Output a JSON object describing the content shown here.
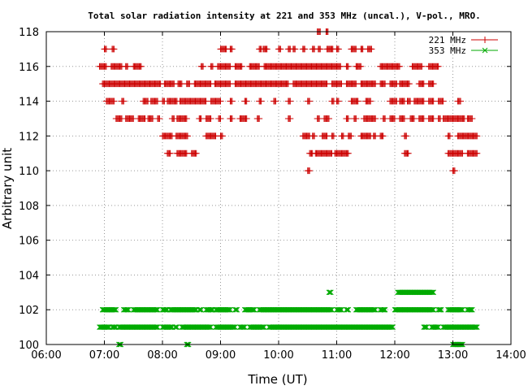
{
  "chart_data": {
    "type": "scatter",
    "title": "Total solar radiation intensity at 221 and 353 MHz (uncal.), V-pol., MRO.",
    "xlabel": "Time (UT)",
    "ylabel": "Arbitrary unit",
    "xlim": [
      "06:00",
      "14:00"
    ],
    "ylim": [
      100,
      118
    ],
    "xticks": [
      "06:00",
      "07:00",
      "08:00",
      "09:00",
      "10:00",
      "11:00",
      "12:00",
      "13:00",
      "14:00"
    ],
    "yticks": [
      "100",
      "102",
      "104",
      "106",
      "108",
      "110",
      "112",
      "114",
      "116",
      "118"
    ],
    "grid": true,
    "legend_position": "top-right",
    "series": [
      {
        "name": "221 MHz",
        "color": "#cc0000",
        "marker": "plus",
        "segments": [
          {
            "y": 118,
            "ranges": [
              [
                "10:40",
                "10:43"
              ],
              [
                "10:49",
                "10:51"
              ]
            ]
          },
          {
            "y": 117,
            "ranges": [
              [
                "07:00",
                "07:02"
              ],
              [
                "07:08",
                "07:10"
              ],
              [
                "09:00",
                "09:06"
              ],
              [
                "09:10",
                "09:12"
              ],
              [
                "09:40",
                "09:42"
              ],
              [
                "09:44",
                "09:48"
              ],
              [
                "10:00",
                "10:02"
              ],
              [
                "10:10",
                "10:12"
              ],
              [
                "10:15",
                "10:17"
              ],
              [
                "10:25",
                "10:27"
              ],
              [
                "10:35",
                "10:37"
              ],
              [
                "10:41",
                "10:43"
              ],
              [
                "10:50",
                "10:56"
              ],
              [
                "11:00",
                "11:02"
              ],
              [
                "11:15",
                "11:20"
              ],
              [
                "11:25",
                "11:27"
              ],
              [
                "11:32",
                "11:36"
              ]
            ]
          },
          {
            "y": 116,
            "ranges": [
              [
                "06:55",
                "07:02"
              ],
              [
                "07:07",
                "07:18"
              ],
              [
                "07:22",
                "07:24"
              ],
              [
                "07:30",
                "07:38"
              ],
              [
                "08:40",
                "08:42"
              ],
              [
                "08:50",
                "08:52"
              ],
              [
                "08:57",
                "09:10"
              ],
              [
                "09:15",
                "09:22"
              ],
              [
                "09:30",
                "09:40"
              ],
              [
                "09:45",
                "11:04"
              ],
              [
                "11:10",
                "11:12"
              ],
              [
                "11:20",
                "11:25"
              ],
              [
                "11:45",
                "12:05"
              ],
              [
                "12:18",
                "12:28"
              ],
              [
                "12:35",
                "12:45"
              ]
            ]
          },
          {
            "y": 115,
            "ranges": [
              [
                "06:58",
                "07:58"
              ],
              [
                "08:02",
                "08:12"
              ],
              [
                "08:16",
                "08:20"
              ],
              [
                "08:25",
                "08:28"
              ],
              [
                "08:33",
                "08:50"
              ],
              [
                "08:54",
                "09:10"
              ],
              [
                "09:15",
                "10:10"
              ],
              [
                "10:15",
                "10:50"
              ],
              [
                "10:55",
                "11:05"
              ],
              [
                "11:10",
                "11:20"
              ],
              [
                "11:25",
                "11:40"
              ],
              [
                "11:45",
                "11:50"
              ],
              [
                "11:55",
                "12:02"
              ],
              [
                "12:05",
                "12:15"
              ],
              [
                "12:25",
                "12:30"
              ],
              [
                "12:35",
                "12:40"
              ]
            ]
          },
          {
            "y": 114,
            "ranges": [
              [
                "07:02",
                "07:10"
              ],
              [
                "07:18",
                "07:20"
              ],
              [
                "07:40",
                "07:45"
              ],
              [
                "07:48",
                "07:55"
              ],
              [
                "08:00",
                "08:02"
              ],
              [
                "08:05",
                "08:15"
              ],
              [
                "08:18",
                "08:45"
              ],
              [
                "08:50",
                "09:00"
              ],
              [
                "09:10",
                "09:12"
              ],
              [
                "09:25",
                "09:27"
              ],
              [
                "09:40",
                "09:42"
              ],
              [
                "09:55",
                "09:57"
              ],
              [
                "10:10",
                "10:12"
              ],
              [
                "10:30",
                "10:32"
              ],
              [
                "10:55",
                "10:57"
              ],
              [
                "11:00",
                "11:02"
              ],
              [
                "11:15",
                "11:22"
              ],
              [
                "11:30",
                "11:35"
              ],
              [
                "11:55",
                "12:02"
              ],
              [
                "12:05",
                "12:10"
              ],
              [
                "12:13",
                "12:16"
              ],
              [
                "12:20",
                "12:30"
              ],
              [
                "12:35",
                "12:40"
              ],
              [
                "12:45",
                "12:50"
              ],
              [
                "13:05",
                "13:08"
              ]
            ]
          },
          {
            "y": 113,
            "ranges": [
              [
                "07:12",
                "07:18"
              ],
              [
                "07:22",
                "07:30"
              ],
              [
                "07:35",
                "07:42"
              ],
              [
                "07:45",
                "07:50"
              ],
              [
                "07:55",
                "07:57"
              ],
              [
                "08:10",
                "08:12"
              ],
              [
                "08:15",
                "08:25"
              ],
              [
                "08:38",
                "08:40"
              ],
              [
                "08:45",
                "08:50"
              ],
              [
                "08:58",
                "09:00"
              ],
              [
                "09:10",
                "09:12"
              ],
              [
                "09:20",
                "09:27"
              ],
              [
                "09:38",
                "09:40"
              ],
              [
                "10:10",
                "10:12"
              ],
              [
                "10:40",
                "10:42"
              ],
              [
                "10:47",
                "10:52"
              ],
              [
                "11:10",
                "11:12"
              ],
              [
                "11:18",
                "11:20"
              ],
              [
                "11:28",
                "11:40"
              ],
              [
                "11:48",
                "11:50"
              ],
              [
                "11:55",
                "12:00"
              ],
              [
                "12:05",
                "12:10"
              ],
              [
                "12:16",
                "12:20"
              ],
              [
                "12:25",
                "12:30"
              ],
              [
                "12:35",
                "12:40"
              ],
              [
                "12:45",
                "12:47"
              ],
              [
                "12:50",
                "13:12"
              ],
              [
                "13:15",
                "13:20"
              ]
            ]
          },
          {
            "y": 112,
            "ranges": [
              [
                "08:00",
                "08:10"
              ],
              [
                "08:14",
                "08:26"
              ],
              [
                "08:45",
                "08:55"
              ],
              [
                "09:00",
                "09:02"
              ],
              [
                "10:25",
                "10:32"
              ],
              [
                "10:35",
                "10:37"
              ],
              [
                "10:45",
                "10:50"
              ],
              [
                "10:55",
                "10:57"
              ],
              [
                "11:05",
                "11:07"
              ],
              [
                "11:12",
                "11:15"
              ],
              [
                "11:25",
                "11:35"
              ],
              [
                "11:38",
                "11:40"
              ],
              [
                "11:45",
                "11:48"
              ],
              [
                "12:10",
                "12:12"
              ],
              [
                "12:55",
                "12:57"
              ],
              [
                "13:05",
                "13:25"
              ]
            ]
          },
          {
            "y": 111,
            "ranges": [
              [
                "08:05",
                "08:08"
              ],
              [
                "08:15",
                "08:25"
              ],
              [
                "08:30",
                "08:35"
              ],
              [
                "10:32",
                "10:35"
              ],
              [
                "10:38",
                "10:55"
              ],
              [
                "10:58",
                "11:12"
              ],
              [
                "12:10",
                "12:14"
              ],
              [
                "12:55",
                "13:10"
              ],
              [
                "13:15",
                "13:25"
              ]
            ]
          },
          {
            "y": 110,
            "ranges": [
              [
                "10:30",
                "10:32"
              ],
              [
                "13:00",
                "13:02"
              ]
            ]
          }
        ]
      },
      {
        "name": "353 MHz",
        "color": "#00aa00",
        "marker": "cross",
        "segments": [
          {
            "y": 103,
            "ranges": [
              [
                "10:52",
                "10:54"
              ],
              [
                "12:03",
                "12:40"
              ]
            ]
          },
          {
            "y": 102,
            "ranges": [
              [
                "06:58",
                "07:12"
              ],
              [
                "07:20",
                "07:25"
              ],
              [
                "07:30",
                "07:55"
              ],
              [
                "08:00",
                "08:05"
              ],
              [
                "08:08",
                "08:35"
              ],
              [
                "08:38",
                "08:40"
              ],
              [
                "08:45",
                "08:52"
              ],
              [
                "08:55",
                "09:10"
              ],
              [
                "09:15",
                "09:17"
              ],
              [
                "09:25",
                "09:35"
              ],
              [
                "09:40",
                "10:55"
              ],
              [
                "11:00",
                "11:05"
              ],
              [
                "11:10",
                "11:12"
              ],
              [
                "11:20",
                "11:40"
              ],
              [
                "11:45",
                "11:50"
              ],
              [
                "12:00",
                "12:40"
              ],
              [
                "12:45",
                "12:48"
              ],
              [
                "12:55",
                "13:10"
              ],
              [
                "13:15",
                "13:20"
              ]
            ]
          },
          {
            "y": 101,
            "ranges": [
              [
                "06:55",
                "07:05"
              ],
              [
                "07:08",
                "07:12"
              ],
              [
                "07:15",
                "07:55"
              ],
              [
                "08:00",
                "08:10"
              ],
              [
                "08:13",
                "08:15"
              ],
              [
                "08:20",
                "08:50"
              ],
              [
                "08:55",
                "09:15"
              ],
              [
                "09:20",
                "09:25"
              ],
              [
                "09:30",
                "09:45"
              ],
              [
                "09:50",
                "11:58"
              ],
              [
                "12:30",
                "12:33"
              ],
              [
                "12:38",
                "12:45"
              ],
              [
                "12:50",
                "13:25"
              ]
            ]
          },
          {
            "y": 100,
            "ranges": [
              [
                "07:15",
                "07:17"
              ],
              [
                "08:25",
                "08:27"
              ],
              [
                "13:00",
                "13:10"
              ]
            ]
          }
        ]
      }
    ]
  }
}
